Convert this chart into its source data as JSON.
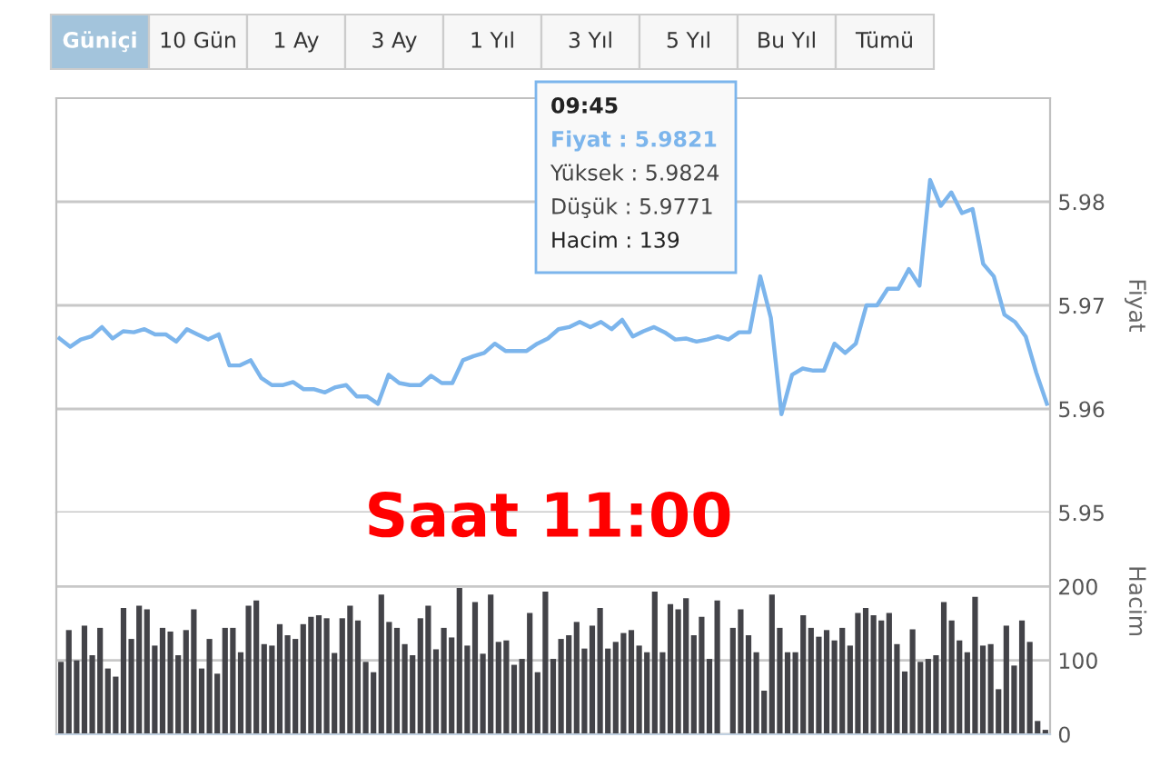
{
  "chart_data": [
    {
      "type": "other",
      "annotations": [
        "Güniçi",
        "10 Gün",
        "1 Ay",
        "3 Ay",
        "1 Yıl",
        "3 Yıl",
        "5 Yıl",
        "Bu Yıl",
        "Tümü"
      ]
    },
    {
      "type": "line",
      "ylabel": "Fiyat",
      "color": "#7cb5ec",
      "ylim": [
        5.95,
        5.99
      ],
      "yticks": [
        5.95,
        5.96,
        5.97,
        5.98
      ],
      "grid": "y",
      "tick_labels": "y",
      "annotations": [
        "09:45",
        "Fiyat : 5.9821",
        "Yüksek : 5.9824",
        "Düşük : 5.9771",
        "Hacim : 139"
      ],
      "categories": [
        null,
        null,
        null,
        null,
        null,
        null,
        null,
        null,
        null,
        null,
        null,
        null,
        null,
        null,
        null,
        null,
        null,
        null,
        null,
        null,
        null,
        null,
        null,
        null,
        null,
        null,
        null,
        null,
        null,
        null,
        null,
        null,
        null,
        null,
        null,
        null,
        null,
        null,
        null,
        null,
        null,
        null,
        null,
        null,
        null,
        null,
        null,
        null,
        null,
        null,
        null,
        null,
        null,
        null,
        null,
        null,
        null,
        null,
        null,
        null,
        null,
        null,
        null,
        null,
        null,
        null,
        null,
        null,
        null,
        null,
        null,
        null,
        null,
        null,
        null,
        null,
        null,
        null,
        null,
        null,
        null,
        null,
        null,
        null,
        null,
        null,
        null,
        null,
        null,
        null,
        null,
        null,
        null,
        null
      ],
      "values": [
        5.9668,
        5.966,
        5.9667,
        5.967,
        5.9679,
        5.9668,
        5.9675,
        5.9674,
        5.9677,
        5.9672,
        5.9672,
        5.9665,
        5.9677,
        5.9672,
        5.9667,
        5.9672,
        5.9642,
        5.9642,
        5.9647,
        5.963,
        5.9623,
        5.9623,
        5.9626,
        5.9619,
        5.9619,
        5.9616,
        5.9621,
        5.9623,
        5.9612,
        5.9612,
        5.9605,
        5.9633,
        5.9625,
        5.9623,
        5.9623,
        5.9632,
        5.9625,
        5.9625,
        5.9647,
        5.9651,
        5.9654,
        5.9663,
        5.9656,
        5.9656,
        5.9656,
        5.9663,
        5.9668,
        5.9677,
        5.9679,
        5.9684,
        5.9679,
        5.9684,
        5.9677,
        5.9686,
        5.967,
        5.9675,
        5.9679,
        5.9674,
        5.9667,
        5.9668,
        5.9665,
        5.9667,
        5.967,
        5.9667,
        5.9674,
        5.9674,
        5.9728,
        5.9688,
        5.9595,
        5.9633,
        5.9639,
        5.9637,
        5.9637,
        5.9663,
        5.9654,
        5.9663,
        5.97,
        5.97,
        5.9716,
        5.9716,
        5.9735,
        5.9719,
        5.9821,
        5.9796,
        5.9809,
        5.9789,
        5.9793,
        5.974,
        5.9728,
        5.9691,
        5.9684,
        5.967,
        5.9635,
        5.9605
      ]
    },
    {
      "type": "bar",
      "ylabel": "Hacim",
      "color": "#434348",
      "ylim": [
        0,
        300
      ],
      "yticks": [
        0,
        100,
        200
      ],
      "grid": "y",
      "tick_labels": "y",
      "annotations": [
        "Saat 11:00"
      ],
      "categories": [
        null,
        null,
        null,
        null,
        null,
        null,
        null,
        null,
        null,
        null,
        null,
        null,
        null,
        null,
        null,
        null,
        null,
        null,
        null,
        null,
        null,
        null,
        null,
        null,
        null,
        null,
        null,
        null,
        null,
        null,
        null,
        null,
        null,
        null,
        null,
        null,
        null,
        null,
        null,
        null,
        null,
        null,
        null,
        null,
        null,
        null,
        null,
        null,
        null,
        null,
        null,
        null,
        null,
        null,
        null,
        null,
        null,
        null,
        null,
        null,
        null,
        null,
        null,
        null,
        null,
        null,
        null,
        null,
        null,
        null,
        null,
        null,
        null,
        null,
        null,
        null,
        null,
        null,
        null,
        null,
        null,
        null,
        null,
        null,
        null,
        null,
        null,
        null,
        null,
        null,
        null,
        null,
        null,
        null,
        null,
        null,
        null,
        null,
        null,
        null,
        null,
        null,
        null,
        null,
        null,
        null,
        null,
        null,
        null,
        null,
        null,
        null,
        null,
        null,
        null,
        null,
        null,
        null,
        null,
        null,
        null,
        null,
        null,
        null,
        null,
        null,
        null
      ],
      "values": [
        98,
        141,
        100,
        147,
        107,
        144,
        89,
        78,
        171,
        129,
        174,
        169,
        120,
        144,
        139,
        107,
        141,
        169,
        89,
        129,
        82,
        144,
        144,
        111,
        174,
        181,
        122,
        120,
        149,
        134,
        129,
        149,
        159,
        161,
        157,
        110,
        157,
        174,
        154,
        98,
        84,
        189,
        152,
        144,
        122,
        107,
        157,
        174,
        115,
        144,
        131,
        198,
        120,
        179,
        109,
        189,
        125,
        127,
        94,
        102,
        164,
        84,
        193,
        102,
        129,
        134,
        152,
        116,
        147,
        171,
        116,
        125,
        137,
        141,
        120,
        111,
        193,
        111,
        176,
        169,
        184,
        134,
        159,
        102,
        181,
        0,
        144,
        169,
        134,
        111,
        59,
        189,
        144,
        111,
        111,
        161,
        144,
        132,
        141,
        127,
        144,
        120,
        164,
        171,
        161,
        154,
        164,
        122,
        85,
        142,
        98,
        102,
        107,
        179,
        154,
        127,
        111,
        186,
        120,
        122,
        61,
        147,
        93,
        154,
        125,
        18,
        6
      ]
    }
  ]
}
